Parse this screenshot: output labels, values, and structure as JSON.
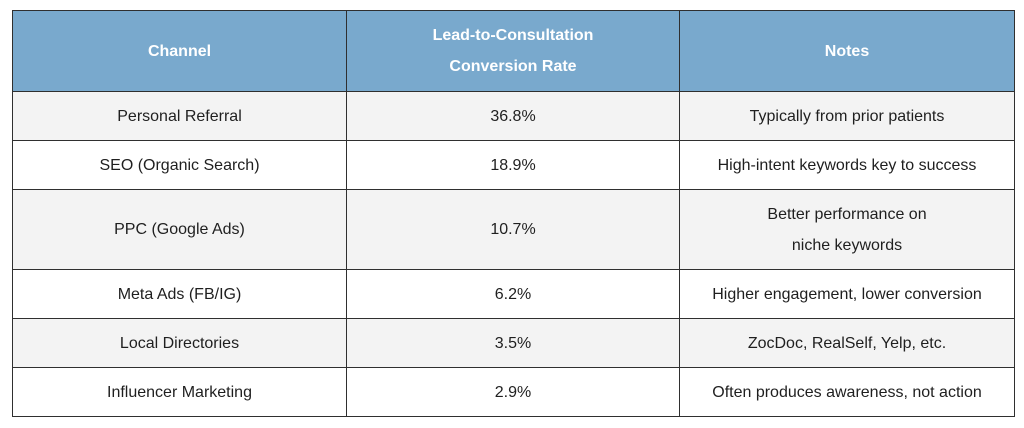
{
  "chart_data": {
    "type": "table",
    "headers": {
      "channel": "Channel",
      "rate_line1": "Lead-to-Consultation",
      "rate_line2": "Conversion Rate",
      "notes": "Notes"
    },
    "rows": [
      {
        "channel": "Personal Referral",
        "rate": "36.8%",
        "notes": [
          "Typically from prior patients"
        ]
      },
      {
        "channel": "SEO (Organic Search)",
        "rate": "18.9%",
        "notes": [
          "High-intent keywords key to success"
        ]
      },
      {
        "channel": "PPC (Google Ads)",
        "rate": "10.7%",
        "notes": [
          "Better performance on",
          "niche keywords"
        ]
      },
      {
        "channel": "Meta Ads (FB/IG)",
        "rate": "6.2%",
        "notes": [
          "Higher engagement, lower conversion"
        ]
      },
      {
        "channel": "Local Directories",
        "rate": "3.5%",
        "notes": [
          "ZocDoc, RealSelf, Yelp, etc."
        ]
      },
      {
        "channel": "Influencer Marketing",
        "rate": "2.9%",
        "notes": [
          "Often produces awareness, not action"
        ]
      }
    ],
    "colors": {
      "header_background": "#79a9cd",
      "header_text": "#ffffff",
      "odd_row_background": "#f3f3f3",
      "even_row_background": "#ffffff",
      "border": "#2f2f2f"
    }
  }
}
